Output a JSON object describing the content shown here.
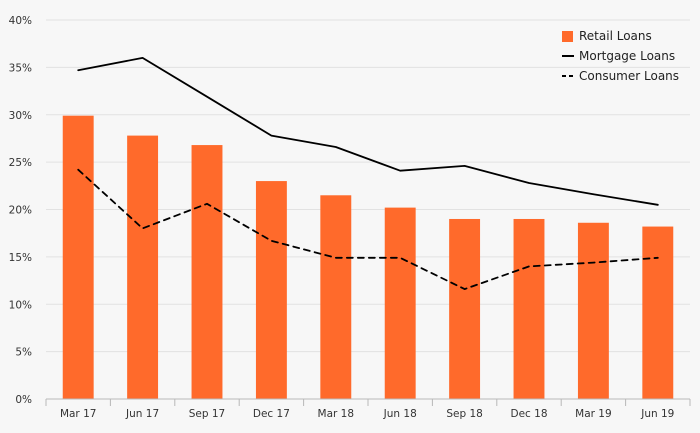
{
  "chart_data": {
    "type": "bar",
    "categories": [
      "Mar 17",
      "Jun 17",
      "Sep 17",
      "Dec 17",
      "Mar 18",
      "Jun 18",
      "Sep 18",
      "Dec 18",
      "Mar 19",
      "Jun 19"
    ],
    "ylim": [
      0,
      40
    ],
    "yticks": [
      0,
      5,
      10,
      15,
      20,
      25,
      30,
      35,
      40
    ],
    "ytick_labels": [
      "0%",
      "5%",
      "10%",
      "15%",
      "20%",
      "25%",
      "30%",
      "35%",
      "40%"
    ],
    "grid": true,
    "legend_position": "top-right",
    "series": [
      {
        "name": "Retail Loans",
        "kind": "bar",
        "color": "#ff6a2b",
        "values": [
          29.9,
          27.8,
          26.8,
          23.0,
          21.5,
          20.2,
          19.0,
          19.0,
          18.6,
          18.2
        ]
      },
      {
        "name": "Mortgage Loans",
        "kind": "line",
        "style": "solid",
        "color": "#000000",
        "values": [
          34.7,
          36.0,
          31.9,
          27.8,
          26.6,
          24.1,
          24.6,
          22.8,
          21.6,
          20.5
        ]
      },
      {
        "name": "Consumer Loans",
        "kind": "line",
        "style": "dashed",
        "color": "#000000",
        "values": [
          24.2,
          18.0,
          20.6,
          16.7,
          14.9,
          14.9,
          11.6,
          14.0,
          14.4,
          14.9
        ]
      }
    ]
  }
}
